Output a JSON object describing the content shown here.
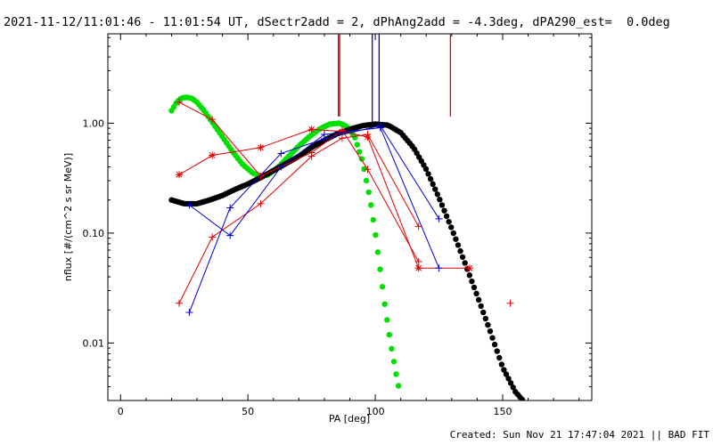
{
  "header": {
    "title": "2021-11-12/11:01:46 - 11:01:54 UT, dSectr2add = 2, dPhAng2add = -4.3deg, dPA290_est=  0.0deg"
  },
  "footer": {
    "created": "Created: Sun Nov 21 17:47:04 2021 || BAD FIT"
  },
  "colors": {
    "red": "#e00000",
    "blue": "#0000d0",
    "green": "#00e000",
    "black": "#000000"
  },
  "chart_data": {
    "type": "line",
    "title": "2021-11-12/11:01:46 - 11:01:54 UT, dSectr2add = 2, dPhAng2add = -4.3deg, dPA290_est=  0.0deg",
    "xlabel": "PA [deg]",
    "ylabel": "nflux [#/(cm^2 s sr MeV)]",
    "xlim": [
      -5,
      185
    ],
    "ylim": [
      0.003,
      6.5
    ],
    "yscale": "log",
    "grid": false,
    "x_ticks": [
      0,
      50,
      100,
      150
    ],
    "x_tick_labels": [
      "0",
      "50",
      "100",
      "150"
    ],
    "y_ticks": [
      0.01,
      0.1,
      1.0
    ],
    "y_tick_labels": [
      "0.01",
      "0.10",
      "1.00"
    ],
    "series": [
      {
        "color": "red",
        "marker": "star",
        "line": true,
        "x": [
          23,
          36,
          55,
          75,
          87,
          97,
          117,
          137
        ],
        "y": [
          0.34,
          0.51,
          0.6,
          0.88,
          0.84,
          0.75,
          0.048,
          0.048
        ]
      },
      {
        "color": "red",
        "marker": "plus",
        "line": true,
        "x": [
          23,
          36,
          55,
          75,
          87,
          97,
          117
        ],
        "y": [
          1.55,
          1.08,
          0.33,
          0.54,
          0.86,
          0.38,
          0.055
        ]
      },
      {
        "color": "red",
        "marker": "plus",
        "line": true,
        "x": [
          23,
          36,
          55,
          75,
          87,
          97,
          117
        ],
        "y": [
          0.023,
          0.092,
          0.185,
          0.5,
          0.73,
          0.79,
          0.115
        ]
      },
      {
        "color": "red",
        "marker": "plus",
        "line": false,
        "x": [
          153
        ],
        "y": [
          0.023
        ]
      },
      {
        "color": "blue",
        "marker": "plus",
        "line": true,
        "x": [
          27,
          43,
          63,
          80,
          102,
          125
        ],
        "y": [
          0.019,
          0.17,
          0.53,
          0.72,
          0.95,
          0.135
        ]
      },
      {
        "color": "blue",
        "marker": "plus",
        "line": true,
        "x": [
          27,
          43,
          63,
          80,
          102,
          125
        ],
        "y": [
          0.18,
          0.095,
          0.4,
          0.79,
          0.91,
          0.048
        ]
      },
      {
        "color": "green",
        "marker": "dot",
        "line": false,
        "kind": "fit_curve",
        "x": [
          20,
          22,
          24,
          26,
          28,
          30,
          33,
          36,
          40,
          44,
          48,
          52,
          55,
          58,
          62,
          66,
          70,
          74,
          78,
          82,
          86,
          89,
          92,
          95,
          98,
          100,
          102,
          104,
          106,
          108,
          110
        ],
        "y": [
          1.3,
          1.55,
          1.7,
          1.72,
          1.68,
          1.55,
          1.28,
          1.02,
          0.75,
          0.55,
          0.42,
          0.35,
          0.33,
          0.34,
          0.4,
          0.5,
          0.62,
          0.75,
          0.88,
          0.98,
          1.0,
          0.93,
          0.74,
          0.45,
          0.2,
          0.1,
          0.045,
          0.02,
          0.01,
          0.0055,
          0.0032
        ]
      },
      {
        "color": "black",
        "marker": "dot",
        "line": false,
        "kind": "fit_curve",
        "x": [
          20,
          25,
          30,
          35,
          40,
          45,
          50,
          55,
          60,
          65,
          70,
          75,
          80,
          85,
          90,
          95,
          100,
          105,
          110,
          115,
          120,
          125,
          130,
          135,
          140,
          145,
          150,
          155,
          158
        ],
        "y": [
          0.2,
          0.185,
          0.185,
          0.2,
          0.22,
          0.25,
          0.28,
          0.32,
          0.37,
          0.43,
          0.5,
          0.6,
          0.7,
          0.8,
          0.88,
          0.95,
          0.98,
          0.96,
          0.82,
          0.6,
          0.38,
          0.21,
          0.11,
          0.055,
          0.027,
          0.013,
          0.006,
          0.0036,
          0.003
        ]
      }
    ],
    "vertical_markers": [
      {
        "color": "red",
        "x": 85.5,
        "y_from": 1.15,
        "y_to": 6.5
      },
      {
        "color": "red",
        "x": 86,
        "y_from": 1.15,
        "y_to": 6.5
      },
      {
        "color": "blue",
        "x": 98.8,
        "y_from": 1.0,
        "y_to": 6.5
      },
      {
        "color": "blue",
        "x": 101.5,
        "y_from": 1.0,
        "y_to": 6.5
      },
      {
        "color": "red",
        "x": 129.5,
        "y_from": 1.15,
        "y_to": 6.5
      }
    ]
  }
}
